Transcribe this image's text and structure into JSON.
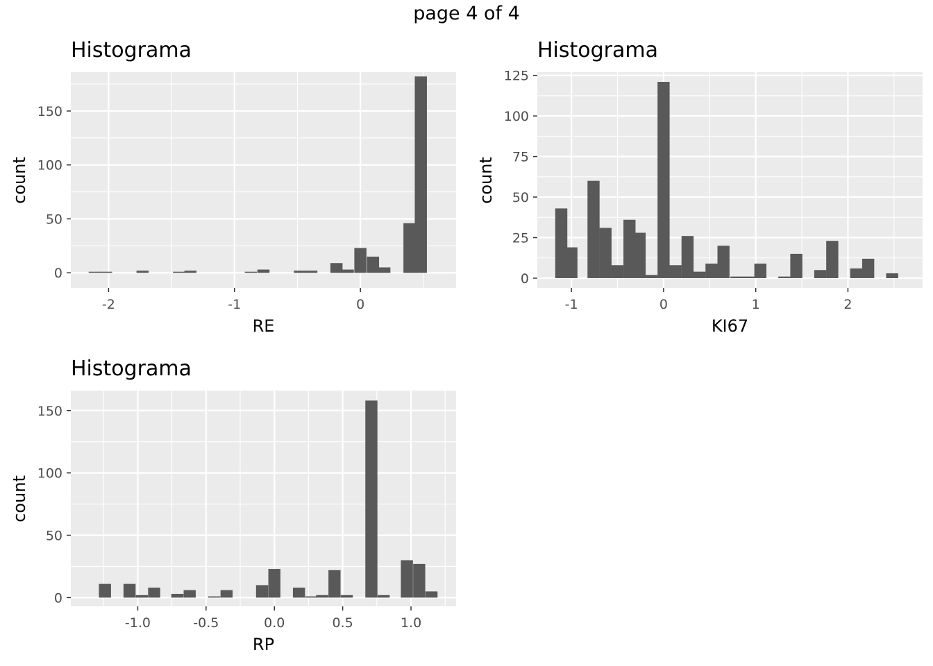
{
  "page_title": "page 4 of 4",
  "chart_data": [
    {
      "type": "bar",
      "title": "Histograma",
      "xlabel": "RE",
      "ylabel": "count",
      "xlim": [
        -2.3,
        0.76
      ],
      "ylim": [
        -14,
        186
      ],
      "x_ticks": [
        -2,
        -1,
        0
      ],
      "x_tick_labels": [
        "-2",
        "-1",
        "0"
      ],
      "y_ticks": [
        0,
        50,
        100,
        150
      ],
      "y_tick_labels": [
        "0",
        "50",
        "100",
        "150"
      ],
      "bin_width": 0.0964,
      "bins": [
        {
          "x": -2.11,
          "count": 1
        },
        {
          "x": -2.02,
          "count": 1
        },
        {
          "x": -1.73,
          "count": 2
        },
        {
          "x": -1.44,
          "count": 1
        },
        {
          "x": -1.35,
          "count": 2
        },
        {
          "x": -0.87,
          "count": 1
        },
        {
          "x": -0.77,
          "count": 3
        },
        {
          "x": -0.48,
          "count": 2
        },
        {
          "x": -0.39,
          "count": 2
        },
        {
          "x": -0.19,
          "count": 9
        },
        {
          "x": -0.1,
          "count": 3
        },
        {
          "x": 0.0,
          "count": 23
        },
        {
          "x": 0.1,
          "count": 15
        },
        {
          "x": 0.19,
          "count": 5
        },
        {
          "x": 0.39,
          "count": 46
        },
        {
          "x": 0.48,
          "count": 182
        }
      ]
    },
    {
      "type": "bar",
      "title": "Histograma",
      "xlabel": "KI67",
      "ylabel": "count",
      "xlim": [
        -1.37,
        2.81
      ],
      "ylim": [
        -6,
        127
      ],
      "x_ticks": [
        -1,
        0,
        1,
        2
      ],
      "x_tick_labels": [
        "-1",
        "0",
        "1",
        "2"
      ],
      "y_ticks": [
        0,
        25,
        50,
        75,
        100,
        125
      ],
      "y_tick_labels": [
        "0",
        "25",
        "50",
        "75",
        "100",
        "125"
      ],
      "bin_width": 0.131,
      "bins": [
        {
          "x": -1.0,
          "count": 19
        },
        {
          "x": -1.11,
          "count": 43
        },
        {
          "x": -0.76,
          "count": 60
        },
        {
          "x": -0.63,
          "count": 31
        },
        {
          "x": -0.5,
          "count": 8
        },
        {
          "x": -0.37,
          "count": 36
        },
        {
          "x": -0.26,
          "count": 28
        },
        {
          "x": -0.13,
          "count": 2
        },
        {
          "x": 0.0,
          "count": 121
        },
        {
          "x": 0.13,
          "count": 8
        },
        {
          "x": 0.26,
          "count": 26
        },
        {
          "x": 0.39,
          "count": 4
        },
        {
          "x": 0.52,
          "count": 9
        },
        {
          "x": 0.65,
          "count": 20
        },
        {
          "x": 0.79,
          "count": 1
        },
        {
          "x": 0.92,
          "count": 1
        },
        {
          "x": 1.05,
          "count": 9
        },
        {
          "x": 1.31,
          "count": 1
        },
        {
          "x": 1.44,
          "count": 15
        },
        {
          "x": 1.7,
          "count": 5
        },
        {
          "x": 1.83,
          "count": 23
        },
        {
          "x": 2.09,
          "count": 6
        },
        {
          "x": 2.22,
          "count": 12
        },
        {
          "x": 2.48,
          "count": 3
        }
      ]
    },
    {
      "type": "bar",
      "title": "Histograma",
      "xlabel": "RP",
      "ylabel": "count",
      "xlim": [
        -1.49,
        1.33
      ],
      "ylim": [
        -7,
        166
      ],
      "x_ticks": [
        -1.0,
        -0.5,
        0.0,
        0.5,
        1.0
      ],
      "x_tick_labels": [
        "-1.0",
        "-0.5",
        "0.0",
        "0.5",
        "1.0"
      ],
      "y_ticks": [
        0,
        50,
        100,
        150
      ],
      "y_tick_labels": [
        "0",
        "50",
        "100",
        "150"
      ],
      "bin_width": 0.0885,
      "bins": [
        {
          "x": -1.24,
          "count": 11
        },
        {
          "x": -1.06,
          "count": 11
        },
        {
          "x": -0.97,
          "count": 2
        },
        {
          "x": -0.88,
          "count": 8
        },
        {
          "x": -0.71,
          "count": 3
        },
        {
          "x": -0.62,
          "count": 6
        },
        {
          "x": -0.44,
          "count": 1
        },
        {
          "x": -0.35,
          "count": 6
        },
        {
          "x": -0.09,
          "count": 10
        },
        {
          "x": 0.0,
          "count": 23
        },
        {
          "x": 0.18,
          "count": 8
        },
        {
          "x": 0.27,
          "count": 1
        },
        {
          "x": 0.35,
          "count": 2
        },
        {
          "x": 0.44,
          "count": 22
        },
        {
          "x": 0.53,
          "count": 2
        },
        {
          "x": 0.71,
          "count": 158
        },
        {
          "x": 0.8,
          "count": 2
        },
        {
          "x": 0.97,
          "count": 30
        },
        {
          "x": 1.06,
          "count": 27
        },
        {
          "x": 1.15,
          "count": 5
        }
      ]
    }
  ]
}
